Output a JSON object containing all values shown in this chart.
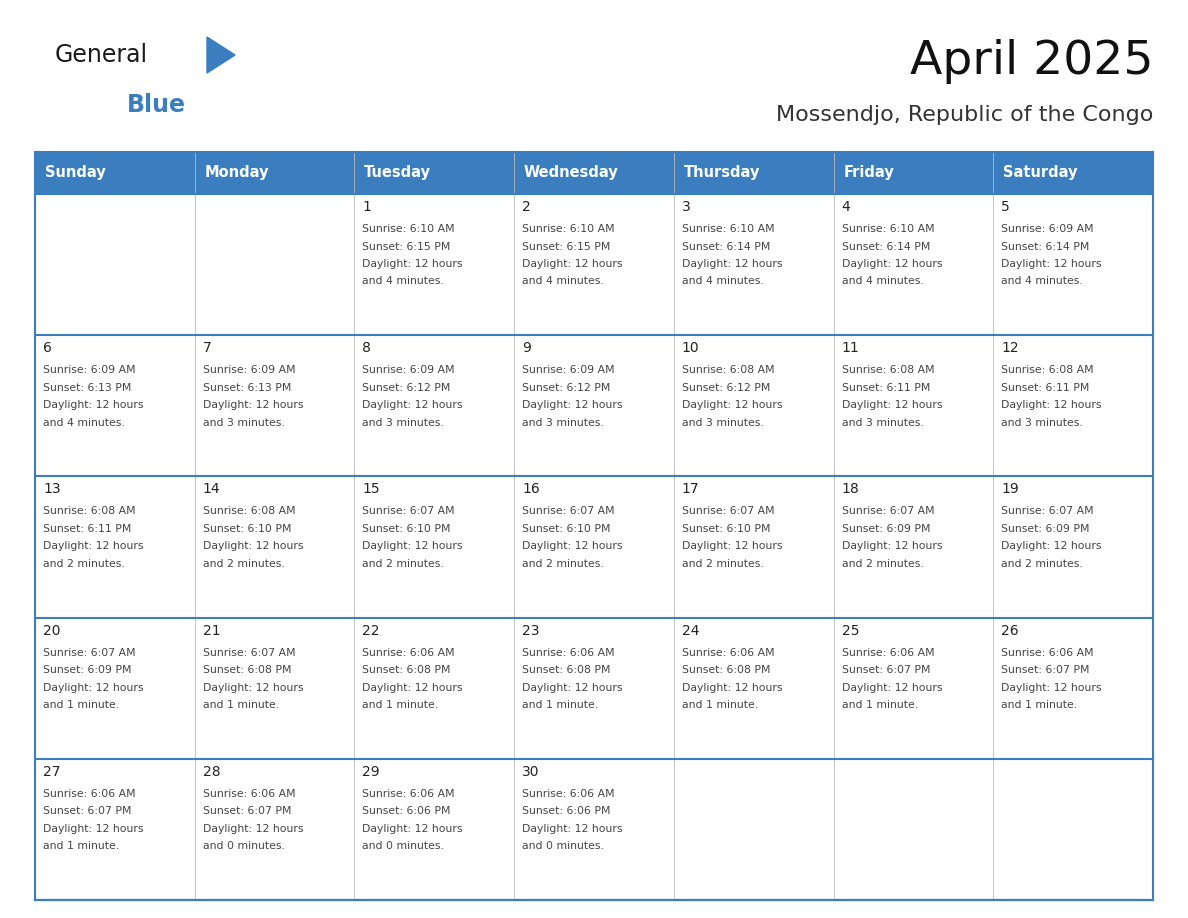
{
  "title": "April 2025",
  "subtitle": "Mossendjo, Republic of the Congo",
  "days_of_week": [
    "Sunday",
    "Monday",
    "Tuesday",
    "Wednesday",
    "Thursday",
    "Friday",
    "Saturday"
  ],
  "header_bg": "#3a7ebf",
  "header_text_color": "#ffffff",
  "border_color": "#3a7ebf",
  "calendar_data": [
    [
      {
        "day": "",
        "sunrise": "",
        "sunset": "",
        "daylight": ""
      },
      {
        "day": "",
        "sunrise": "",
        "sunset": "",
        "daylight": ""
      },
      {
        "day": "1",
        "sunrise": "6:10 AM",
        "sunset": "6:15 PM",
        "daylight": "4 minutes."
      },
      {
        "day": "2",
        "sunrise": "6:10 AM",
        "sunset": "6:15 PM",
        "daylight": "4 minutes."
      },
      {
        "day": "3",
        "sunrise": "6:10 AM",
        "sunset": "6:14 PM",
        "daylight": "4 minutes."
      },
      {
        "day": "4",
        "sunrise": "6:10 AM",
        "sunset": "6:14 PM",
        "daylight": "4 minutes."
      },
      {
        "day": "5",
        "sunrise": "6:09 AM",
        "sunset": "6:14 PM",
        "daylight": "4 minutes."
      }
    ],
    [
      {
        "day": "6",
        "sunrise": "6:09 AM",
        "sunset": "6:13 PM",
        "daylight": "4 minutes."
      },
      {
        "day": "7",
        "sunrise": "6:09 AM",
        "sunset": "6:13 PM",
        "daylight": "3 minutes."
      },
      {
        "day": "8",
        "sunrise": "6:09 AM",
        "sunset": "6:12 PM",
        "daylight": "3 minutes."
      },
      {
        "day": "9",
        "sunrise": "6:09 AM",
        "sunset": "6:12 PM",
        "daylight": "3 minutes."
      },
      {
        "day": "10",
        "sunrise": "6:08 AM",
        "sunset": "6:12 PM",
        "daylight": "3 minutes."
      },
      {
        "day": "11",
        "sunrise": "6:08 AM",
        "sunset": "6:11 PM",
        "daylight": "3 minutes."
      },
      {
        "day": "12",
        "sunrise": "6:08 AM",
        "sunset": "6:11 PM",
        "daylight": "3 minutes."
      }
    ],
    [
      {
        "day": "13",
        "sunrise": "6:08 AM",
        "sunset": "6:11 PM",
        "daylight": "2 minutes."
      },
      {
        "day": "14",
        "sunrise": "6:08 AM",
        "sunset": "6:10 PM",
        "daylight": "2 minutes."
      },
      {
        "day": "15",
        "sunrise": "6:07 AM",
        "sunset": "6:10 PM",
        "daylight": "2 minutes."
      },
      {
        "day": "16",
        "sunrise": "6:07 AM",
        "sunset": "6:10 PM",
        "daylight": "2 minutes."
      },
      {
        "day": "17",
        "sunrise": "6:07 AM",
        "sunset": "6:10 PM",
        "daylight": "2 minutes."
      },
      {
        "day": "18",
        "sunrise": "6:07 AM",
        "sunset": "6:09 PM",
        "daylight": "2 minutes."
      },
      {
        "day": "19",
        "sunrise": "6:07 AM",
        "sunset": "6:09 PM",
        "daylight": "2 minutes."
      }
    ],
    [
      {
        "day": "20",
        "sunrise": "6:07 AM",
        "sunset": "6:09 PM",
        "daylight": "1 minute."
      },
      {
        "day": "21",
        "sunrise": "6:07 AM",
        "sunset": "6:08 PM",
        "daylight": "1 minute."
      },
      {
        "day": "22",
        "sunrise": "6:06 AM",
        "sunset": "6:08 PM",
        "daylight": "1 minute."
      },
      {
        "day": "23",
        "sunrise": "6:06 AM",
        "sunset": "6:08 PM",
        "daylight": "1 minute."
      },
      {
        "day": "24",
        "sunrise": "6:06 AM",
        "sunset": "6:08 PM",
        "daylight": "1 minute."
      },
      {
        "day": "25",
        "sunrise": "6:06 AM",
        "sunset": "6:07 PM",
        "daylight": "1 minute."
      },
      {
        "day": "26",
        "sunrise": "6:06 AM",
        "sunset": "6:07 PM",
        "daylight": "1 minute."
      }
    ],
    [
      {
        "day": "27",
        "sunrise": "6:06 AM",
        "sunset": "6:07 PM",
        "daylight": "1 minute."
      },
      {
        "day": "28",
        "sunrise": "6:06 AM",
        "sunset": "6:07 PM",
        "daylight": "0 minutes."
      },
      {
        "day": "29",
        "sunrise": "6:06 AM",
        "sunset": "6:06 PM",
        "daylight": "0 minutes."
      },
      {
        "day": "30",
        "sunrise": "6:06 AM",
        "sunset": "6:06 PM",
        "daylight": "0 minutes."
      },
      {
        "day": "",
        "sunrise": "",
        "sunset": "",
        "daylight": ""
      },
      {
        "day": "",
        "sunrise": "",
        "sunset": "",
        "daylight": ""
      },
      {
        "day": "",
        "sunrise": "",
        "sunset": "",
        "daylight": ""
      }
    ]
  ],
  "logo_text1": "General",
  "logo_text2": "Blue",
  "logo_color1": "#1a1a1a",
  "logo_color2": "#3a7ebf",
  "logo_triangle_color": "#3a7ebf"
}
